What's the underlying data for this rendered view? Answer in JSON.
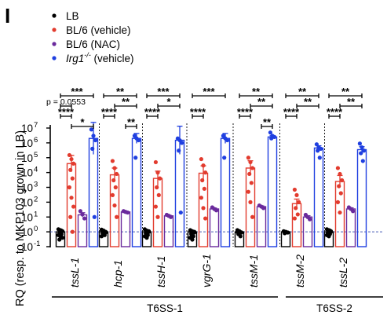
{
  "panel_label": "I",
  "chart_data": {
    "type": "bar",
    "title": "",
    "ylabel": "RQ (resp. to MKP103 grown in LB)",
    "xlabel": "",
    "yscale": "log",
    "ylim": [
      0.1,
      10000000
    ],
    "yticks": [
      {
        "v": 0.1,
        "base": "10",
        "exp": "-1"
      },
      {
        "v": 1,
        "base": "10",
        "exp": "0"
      },
      {
        "v": 10,
        "base": "10",
        "exp": "1"
      },
      {
        "v": 100,
        "base": "10",
        "exp": "2"
      },
      {
        "v": 1000,
        "base": "10",
        "exp": "3"
      },
      {
        "v": 10000,
        "base": "10",
        "exp": "4"
      },
      {
        "v": 100000,
        "base": "10",
        "exp": "5"
      },
      {
        "v": 1000000,
        "base": "10",
        "exp": "6"
      },
      {
        "v": 10000000,
        "base": "10",
        "exp": "7"
      }
    ],
    "reference_line": 1,
    "categories": [
      "tssL-1",
      "hcp-1",
      "tssH-1",
      "vgrG-1",
      "tssM-1",
      "tssM-2",
      "tssL-2"
    ],
    "series": [
      {
        "name": "LB",
        "color": "#000000",
        "values": [
          1,
          1,
          1,
          1,
          1,
          1,
          1
        ],
        "points": [
          [
            1.5,
            1.3,
            1.1,
            0.9,
            0.7,
            0.6,
            0.5,
            0.4,
            0.3,
            1.2
          ],
          [
            1.4,
            1.2,
            1.0,
            0.8,
            0.6,
            0.5,
            1.1,
            0.9
          ],
          [
            1.5,
            1.2,
            1.0,
            0.8,
            0.6,
            0.5,
            0.4,
            1.1
          ],
          [
            1.3,
            1.1,
            0.9,
            0.7,
            0.5,
            0.4,
            0.3,
            1.0,
            0.8
          ],
          [
            1.3,
            1.1,
            0.9,
            0.7,
            0.5,
            1.0
          ],
          [
            1.1,
            1.0,
            0.9,
            0.8
          ],
          [
            1.5,
            1.3,
            1.1,
            0.9,
            0.7,
            0.6,
            0.5,
            1.0,
            0.8,
            1.2
          ]
        ]
      },
      {
        "name": "BL/6 (vehicle)",
        "color": "#e23b2e",
        "values": [
          40000,
          7000,
          4000,
          9000,
          20000,
          80,
          2500
        ],
        "points": [
          [
            150000,
            80000,
            40000,
            15000,
            4000,
            1000,
            200,
            50,
            10,
            1
          ],
          [
            60000,
            20000,
            8000,
            3000,
            1000,
            300,
            60,
            10
          ],
          [
            50000,
            10000,
            4000,
            1000,
            300,
            50,
            10
          ],
          [
            80000,
            30000,
            10000,
            3000,
            800,
            200,
            40,
            8
          ],
          [
            100000,
            50000,
            20000,
            8000,
            2000,
            500,
            100,
            10
          ],
          [
            700,
            300,
            100,
            40,
            15,
            8
          ],
          [
            20000,
            8000,
            3000,
            1200,
            400,
            100,
            20
          ]
        ]
      },
      {
        "name": "BL/6 (NAC)",
        "color": "#6a2a9c",
        "values": [
          14,
          22,
          12,
          35,
          50,
          10,
          35
        ],
        "points": [
          [
            25,
            15,
            8
          ],
          [
            25,
            22,
            20
          ],
          [
            14,
            12,
            10
          ],
          [
            45,
            35,
            28
          ],
          [
            60,
            50,
            40
          ],
          [
            14,
            10,
            7
          ],
          [
            45,
            35,
            25
          ]
        ]
      },
      {
        "name": "Irg1 (vehicle)",
        "name_sup": "-/-",
        "color": "#1f3fe0",
        "values": [
          2000000,
          2000000,
          1500000,
          2000000,
          2500000,
          450000,
          350000
        ],
        "points": [
          [
            8000000,
            3000000,
            1500000,
            400000,
            10
          ],
          [
            3000000,
            2000000,
            1500000,
            100000
          ],
          [
            2000000,
            1500000,
            1000000,
            300000,
            20
          ],
          [
            3000000,
            2000000,
            1500000,
            100000
          ],
          [
            5000000,
            3000000,
            2500000,
            2000000
          ],
          [
            800000,
            500000,
            400000,
            300000,
            100000
          ],
          [
            900000,
            500000,
            300000,
            200000,
            60000
          ]
        ]
      }
    ],
    "legend_placement": "top-left",
    "significance": [
      {
        "group": 0,
        "from": 0,
        "to": 3,
        "label": "***",
        "tier": 0
      },
      {
        "group": 0,
        "from": 0,
        "to": 1,
        "label": "p = 0.0553",
        "tier": 1
      },
      {
        "group": 0,
        "from": 0,
        "to": 1,
        "label": "****",
        "tier": 2
      },
      {
        "group": 0,
        "from": 1,
        "to": 3,
        "label": "*",
        "tier": 3
      },
      {
        "group": 1,
        "from": 0,
        "to": 3,
        "label": "**",
        "tier": 0
      },
      {
        "group": 1,
        "from": 1,
        "to": 3,
        "label": "**",
        "tier": 1
      },
      {
        "group": 1,
        "from": 0,
        "to": 1,
        "label": "****",
        "tier": 2
      },
      {
        "group": 1,
        "from": 2,
        "to": 3,
        "label": "**",
        "tier": 3
      },
      {
        "group": 2,
        "from": 0,
        "to": 3,
        "label": "***",
        "tier": 0
      },
      {
        "group": 2,
        "from": 1,
        "to": 3,
        "label": "*",
        "tier": 1
      },
      {
        "group": 2,
        "from": 0,
        "to": 1,
        "label": "****",
        "tier": 2
      },
      {
        "group": 3,
        "from": 0,
        "to": 3,
        "label": "***",
        "tier": 0
      },
      {
        "group": 3,
        "from": 0,
        "to": 1,
        "label": "****",
        "tier": 2
      },
      {
        "group": 4,
        "from": 0,
        "to": 3,
        "label": "**",
        "tier": 0
      },
      {
        "group": 4,
        "from": 1,
        "to": 3,
        "label": "**",
        "tier": 1
      },
      {
        "group": 4,
        "from": 0,
        "to": 1,
        "label": "****",
        "tier": 2
      },
      {
        "group": 4,
        "from": 2,
        "to": 3,
        "label": "**",
        "tier": 3
      },
      {
        "group": 5,
        "from": 0,
        "to": 3,
        "label": "**",
        "tier": 0
      },
      {
        "group": 5,
        "from": 1,
        "to": 3,
        "label": "**",
        "tier": 1
      },
      {
        "group": 5,
        "from": 0,
        "to": 1,
        "label": "****",
        "tier": 2
      },
      {
        "group": 6,
        "from": 0,
        "to": 3,
        "label": "**",
        "tier": 0
      },
      {
        "group": 6,
        "from": 1,
        "to": 3,
        "label": "**",
        "tier": 1
      },
      {
        "group": 6,
        "from": 0,
        "to": 1,
        "label": "****",
        "tier": 2
      }
    ],
    "category_groups": [
      {
        "label": "T6SS-1",
        "from": 0,
        "to": 4
      },
      {
        "label": "T6SS-2",
        "from": 5,
        "to": 6
      }
    ]
  }
}
